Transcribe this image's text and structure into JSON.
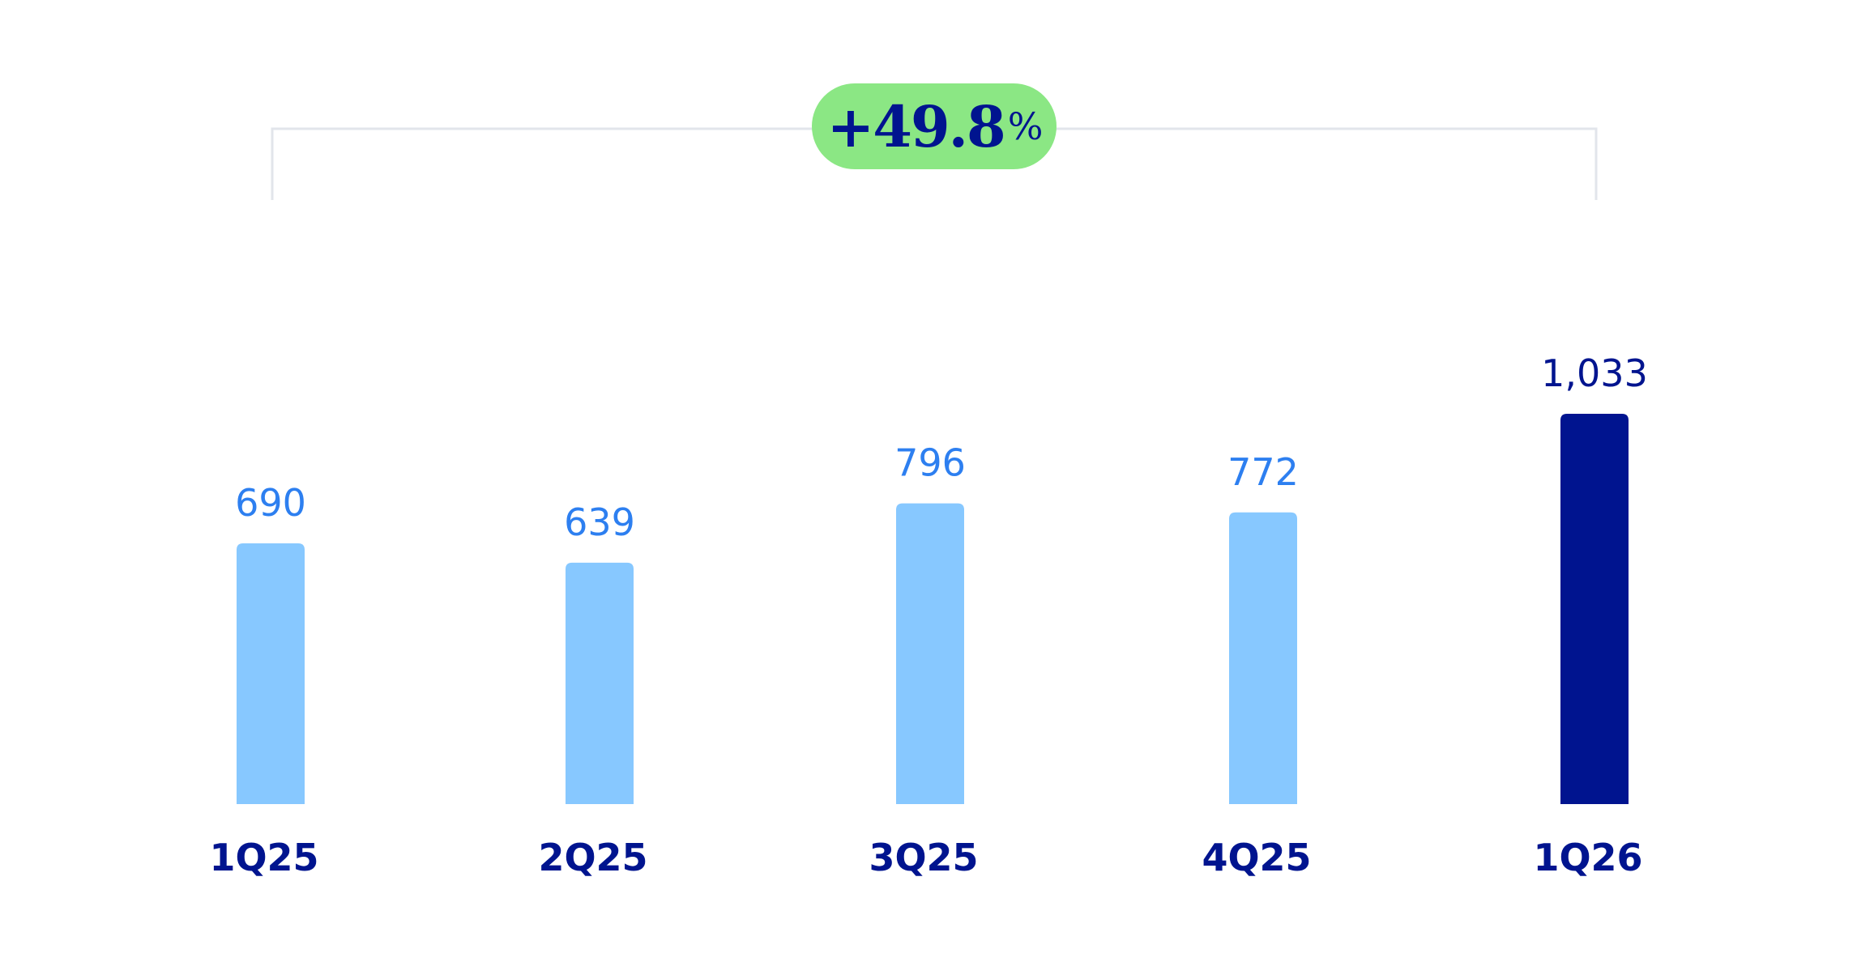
{
  "chart_data": {
    "type": "bar",
    "categories": [
      "1Q25",
      "2Q25",
      "3Q25",
      "4Q25",
      "1Q26"
    ],
    "values": [
      690,
      639,
      796,
      772,
      1033
    ],
    "value_labels": [
      "690",
      "639",
      "796",
      "772",
      "1,033"
    ],
    "title": "",
    "xlabel": "",
    "ylabel": "",
    "ylim": [
      0,
      1100
    ],
    "grid": false,
    "highlighted_category": "1Q26",
    "annotation": {
      "from": "1Q25",
      "to": "1Q26",
      "value": "+49.8",
      "unit": "%"
    },
    "colors": {
      "bar": "#87C8FF",
      "bar_highlight": "#00148F",
      "value_label": "#2D7FF0",
      "value_label_highlight": "#00148F",
      "category_label": "#00148F",
      "annotation_bg": "#8BE784",
      "bracket": "#E2E5EB"
    }
  }
}
